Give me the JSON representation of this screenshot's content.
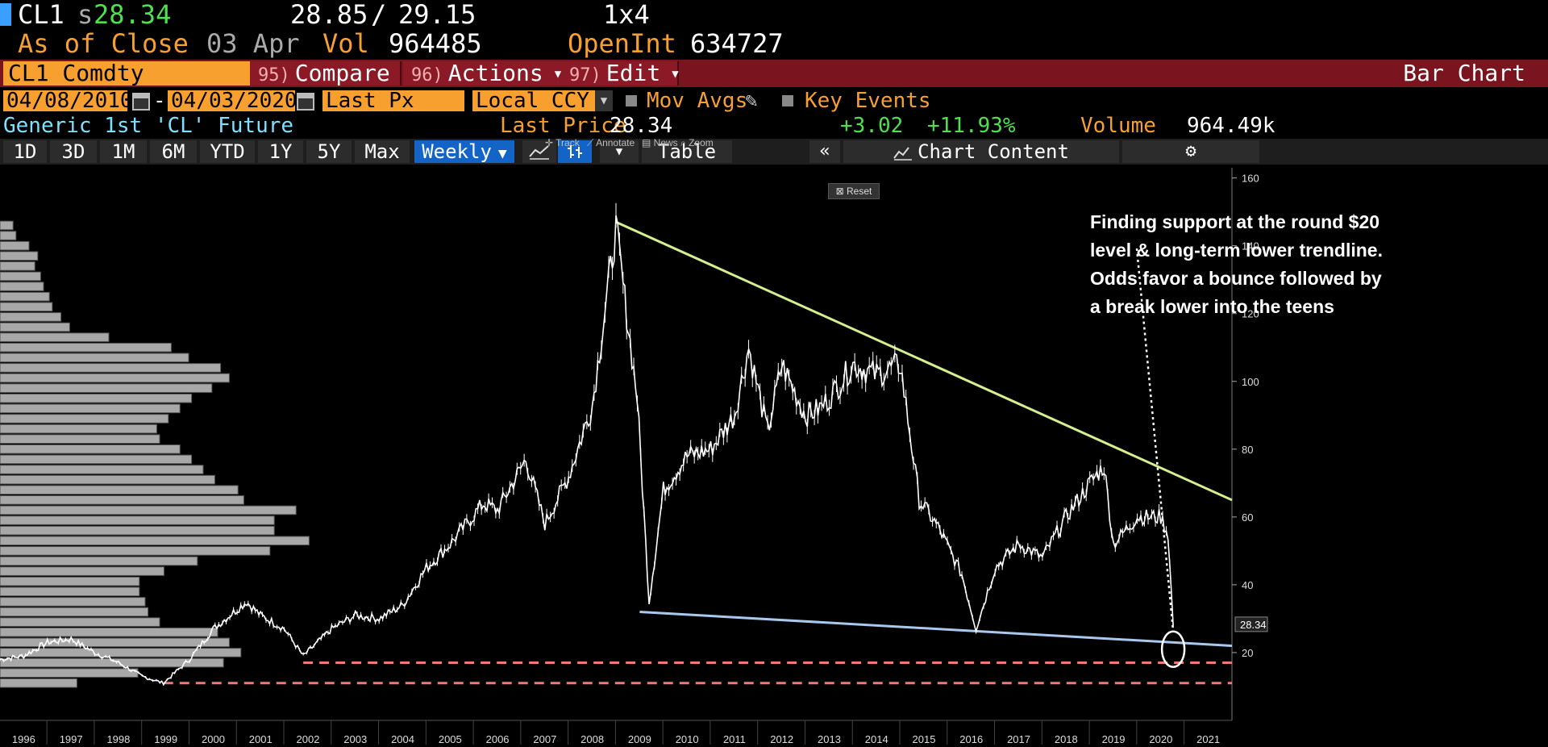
{
  "header": {
    "ticker": "CL1",
    "price_prefix": "s",
    "price": "28.34",
    "bid": "28.85",
    "slash": "/",
    "ask": "29.15",
    "size": "1x4",
    "asof": "As of Close",
    "asof_date": "03 Apr",
    "vol_label": "Vol",
    "vol_value": "964485",
    "openint_label": "OpenInt",
    "openint_value": "634727"
  },
  "cmdbar": {
    "security": "CL1 Comdty",
    "compare_num": "95)",
    "compare": "Compare",
    "actions_num": "96)",
    "actions": "Actions",
    "edit_num": "97)",
    "edit": "Edit",
    "title": "Bar Chart"
  },
  "daterow": {
    "start": "04/08/2010",
    "dash": "-",
    "end": "04/03/2020",
    "field": "Last Px",
    "currency": "Local CCY",
    "mov_avgs": "Mov Avgs",
    "key_events": "Key Events"
  },
  "info": {
    "name": "Generic 1st 'CL' Future",
    "last_price_label": "Last Price",
    "last_price": "28.34",
    "change": "+3.02",
    "change_pct": "+11.93%",
    "volume_label": "Volume",
    "volume": "964.49k"
  },
  "toolbar": {
    "periods": [
      "1D",
      "3D",
      "1M",
      "6M",
      "YTD",
      "1Y",
      "5Y",
      "Max"
    ],
    "frequency": "Weekly",
    "table": "Table",
    "chart_content": "Chart Content"
  },
  "chart_tools": {
    "track": "Track",
    "annotate": "Annotate",
    "news": "News",
    "zoom": "Zoom",
    "reset": "Reset"
  },
  "annotation": {
    "lines": [
      "Finding support at the round $20",
      "level & long-term lower trendline.",
      "Odds favor a bounce followed by",
      "a break lower into the teens"
    ]
  },
  "colors": {
    "price": "#ffffff",
    "upper_trendline": "#d4ef8f",
    "lower_trendline": "#a9c8ee",
    "support_dashed": "#f07878",
    "volume_profile": "#a8a8a8",
    "orange_fields": "#f7a030",
    "command_bar": "#7a1520"
  },
  "chart_data": {
    "type": "line",
    "series": [
      {
        "x": [
          1995.5,
          1996.0,
          1996.5,
          1997.0,
          1997.5,
          1998.0,
          1998.5,
          1998.95,
          1999.5,
          2000.0,
          2000.7,
          2001.0,
          2001.5,
          2001.9,
          2002.5,
          2003.0,
          2003.5,
          2004.0,
          2004.5,
          2005.0,
          2005.7,
          2006.0,
          2006.6,
          2007.0,
          2007.5,
          2008.0,
          2008.5,
          2008.95,
          2009.2,
          2009.5,
          2010.0,
          2010.5,
          2011.0,
          2011.3,
          2011.7,
          2012.0,
          2012.5,
          2012.8,
          2013.0,
          2013.5,
          2014.0,
          2014.5,
          2014.9,
          2015.3,
          2015.8,
          2016.1,
          2016.5,
          2017.0,
          2017.5,
          2018.0,
          2018.5,
          2018.8,
          2019.0,
          2019.5,
          2020.0,
          2020.15,
          2020.26
        ],
        "y": [
          18,
          19,
          23,
          24,
          20,
          17,
          13,
          11,
          18,
          27,
          35,
          31,
          27,
          19,
          27,
          31,
          30,
          34,
          45,
          52,
          64,
          62,
          77,
          58,
          72,
          93,
          145,
          95,
          35,
          68,
          78,
          80,
          90,
          110,
          85,
          105,
          90,
          92,
          95,
          105,
          102,
          105,
          65,
          57,
          43,
          27,
          45,
          52,
          48,
          60,
          70,
          75,
          52,
          60,
          60,
          55,
          28
        ]
      }
    ],
    "trendlines": [
      {
        "points": [
          [
            2008.5,
            147
          ],
          [
            2021.5,
            65
          ]
        ]
      },
      {
        "points": [
          [
            2009.0,
            32
          ],
          [
            2021.5,
            22
          ]
        ]
      }
    ],
    "support_levels": [
      17,
      11
    ],
    "xlim": [
      1995.5,
      2021.5
    ],
    "ylim": [
      0,
      163
    ],
    "x_ticks": [
      1996,
      1997,
      1998,
      1999,
      2000,
      2001,
      2002,
      2003,
      2004,
      2005,
      2006,
      2007,
      2008,
      2009,
      2010,
      2011,
      2012,
      2013,
      2014,
      2015,
      2016,
      2017,
      2018,
      2019,
      2020,
      2021
    ],
    "y_ticks": [
      20,
      40,
      60,
      80,
      100,
      120,
      140,
      160
    ],
    "last_value_label": "28.34",
    "volume_profile": {
      "price_levels": [
        146,
        143,
        140,
        137,
        134,
        131,
        128,
        125,
        122,
        119,
        116,
        113,
        110,
        107,
        104,
        101,
        98,
        95,
        92,
        89,
        86,
        83,
        80,
        77,
        74,
        71,
        68,
        65,
        62,
        59,
        56,
        53,
        50,
        47,
        44,
        41,
        38,
        35,
        32,
        29,
        26,
        23,
        20,
        17,
        14,
        11
      ],
      "volume_units": [
        0.9,
        1.1,
        2.0,
        2.6,
        2.4,
        2.8,
        3.0,
        3.4,
        3.6,
        4.2,
        4.8,
        7.5,
        11.8,
        13.0,
        15.2,
        15.8,
        14.6,
        13.2,
        12.4,
        11.6,
        10.8,
        11.0,
        12.4,
        13.2,
        14.0,
        14.8,
        16.4,
        16.8,
        20.4,
        18.9,
        18.9,
        21.3,
        18.6,
        13.6,
        11.3,
        9.6,
        9.6,
        10.0,
        10.2,
        11.0,
        15.0,
        15.8,
        16.6,
        15.4,
        9.5,
        5.3
      ]
    }
  }
}
